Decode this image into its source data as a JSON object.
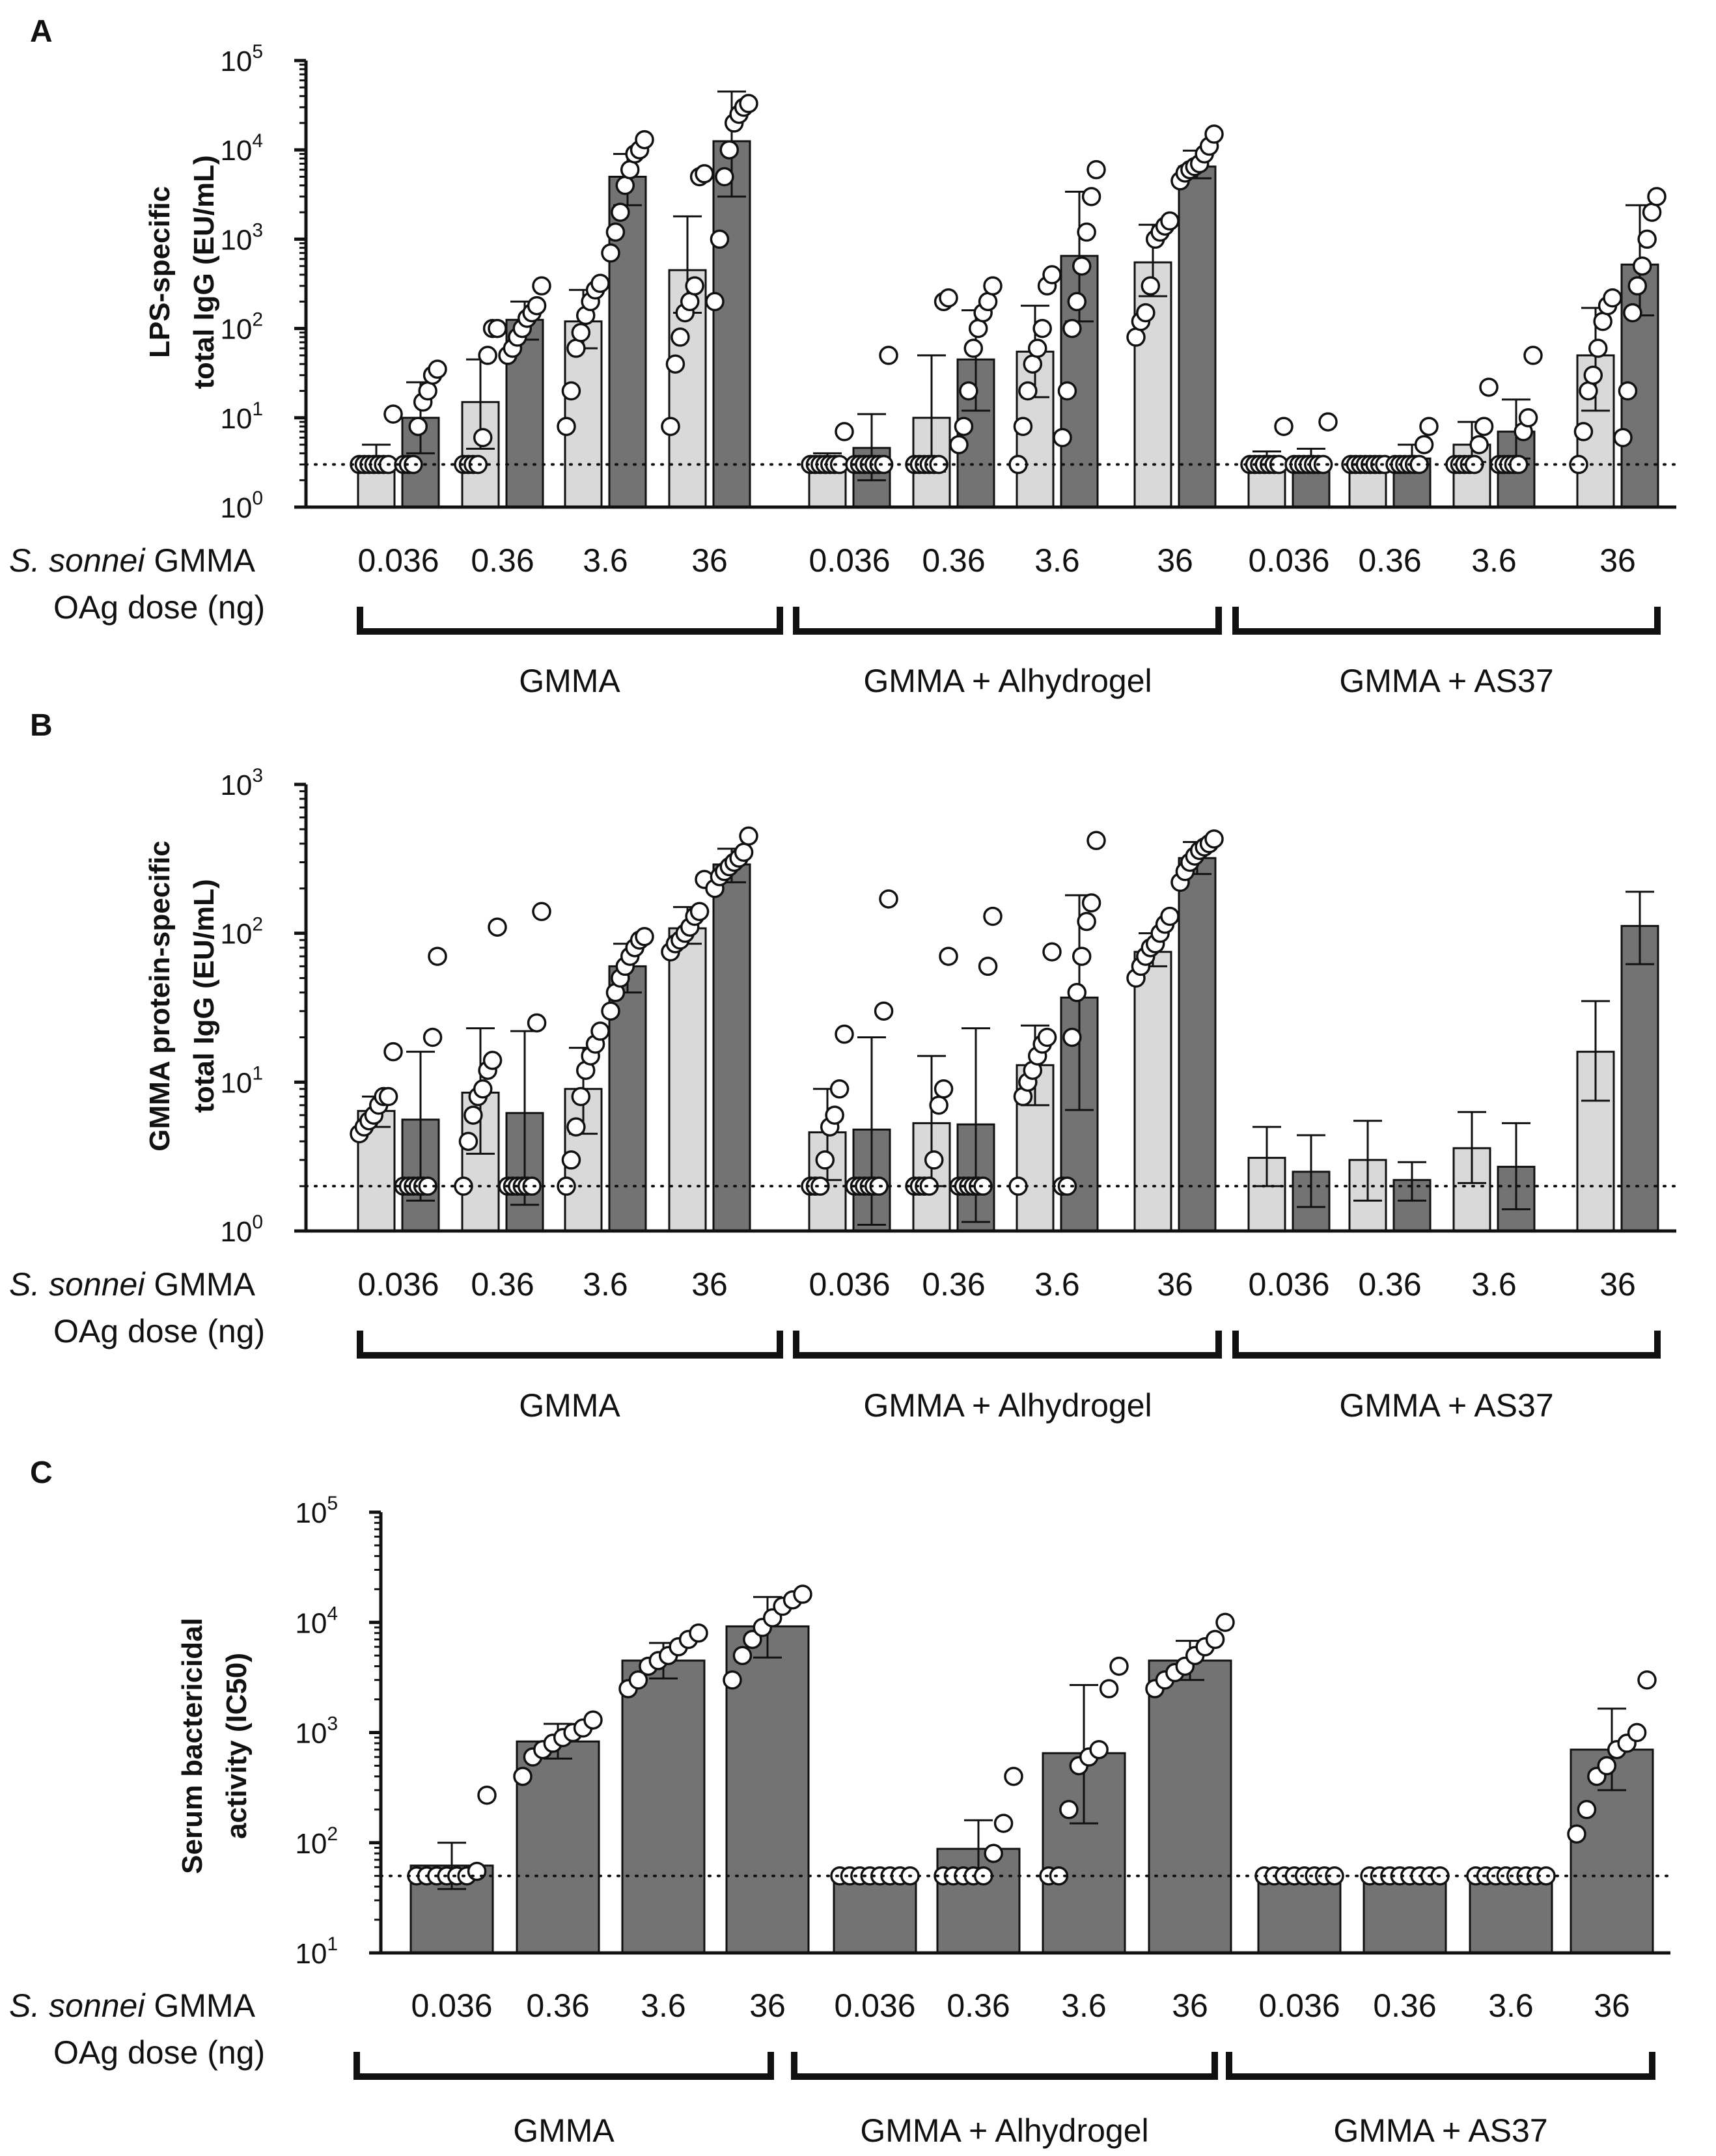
{
  "colors": {
    "light_bar": "#d9d9d9",
    "dark_bar": "#737373",
    "axis": "#111111",
    "point_fill": "#ffffff"
  },
  "row_labels": {
    "strain_italic": "S. sonnei",
    "strain_rest": " GMMA",
    "dose": "OAg dose (ng)"
  },
  "chart_data": [
    {
      "panel": "A",
      "type": "bar",
      "scale": "log",
      "ylabel": [
        "LPS-specific",
        "total IgG (EU/mL)"
      ],
      "ylim": [
        1,
        100000
      ],
      "yticks": [
        {
          "base": "10",
          "exp": "0"
        },
        {
          "base": "10",
          "exp": "1"
        },
        {
          "base": "10",
          "exp": "2"
        },
        {
          "base": "10",
          "exp": "3"
        },
        {
          "base": "10",
          "exp": "4"
        },
        {
          "base": "10",
          "exp": "5"
        }
      ],
      "lod": 3,
      "categories": [
        "0.036",
        "0.36",
        "3.6",
        "36",
        "0.036",
        "0.36",
        "3.6",
        "36",
        "0.036",
        "0.36",
        "3.6",
        "36"
      ],
      "groups": [
        "GMMA",
        "GMMA + Alhydrogel",
        "GMMA + AS37"
      ],
      "series": [
        {
          "name": "light",
          "values": [
            3.3,
            15,
            120,
            450,
            3.3,
            10,
            55,
            550,
            3.3,
            3,
            5,
            50
          ],
          "err": [
            [
              2.5,
              5
            ],
            [
              4.5,
              45
            ],
            [
              60,
              270
            ],
            [
              150,
              1800
            ],
            [
              2.9,
              4
            ],
            [
              2.5,
              50
            ],
            [
              17,
              180
            ],
            [
              230,
              1450
            ],
            [
              2.9,
              4.2
            ],
            [
              2.9,
              3.1
            ],
            [
              3.2,
              9
            ],
            [
              12,
              170
            ]
          ],
          "points": [
            [
              3,
              3,
              3,
              3,
              3,
              3,
              3,
              11
            ],
            [
              3,
              3,
              3,
              3,
              6,
              50,
              100,
              100
            ],
            [
              8,
              20,
              60,
              90,
              140,
              200,
              270,
              320
            ],
            [
              8,
              40,
              80,
              150,
              200,
              300,
              5000,
              5400
            ],
            [
              3,
              3,
              3,
              3,
              3,
              3,
              3,
              7
            ],
            [
              3,
              3,
              3,
              3,
              3,
              3,
              200,
              220
            ],
            [
              3,
              8,
              20,
              40,
              60,
              100,
              300,
              400
            ],
            [
              80,
              120,
              150,
              300,
              1000,
              1200,
              1400,
              1600
            ],
            [
              3,
              3,
              3,
              3,
              3,
              3,
              3,
              8
            ],
            [
              3,
              3,
              3,
              3,
              3,
              3,
              3,
              3
            ],
            [
              3,
              3,
              3,
              3,
              3,
              5,
              8,
              22
            ],
            [
              3,
              7,
              20,
              30,
              60,
              120,
              180,
              220
            ]
          ]
        },
        {
          "name": "dark",
          "values": [
            10,
            125,
            5000,
            12500,
            4.6,
            45,
            650,
            6500,
            3.4,
            3.5,
            7,
            520
          ],
          "err": [
            [
              4,
              25
            ],
            [
              75,
              200
            ],
            [
              2400,
              9000
            ],
            [
              3000,
              45000
            ],
            [
              2,
              11
            ],
            [
              12,
              160
            ],
            [
              120,
              3400
            ],
            [
              4800,
              9800
            ],
            [
              2.9,
              4.5
            ],
            [
              2.8,
              5
            ],
            [
              3.5,
              16
            ],
            [
              140,
              2400
            ]
          ],
          "points": [
            [
              3,
              3,
              3,
              8,
              15,
              20,
              30,
              35
            ],
            [
              50,
              60,
              80,
              100,
              130,
              150,
              180,
              300
            ],
            [
              700,
              1200,
              2000,
              4000,
              6000,
              9000,
              10000,
              13000
            ],
            [
              200,
              1000,
              5000,
              10000,
              20000,
              25000,
              30000,
              33000
            ],
            [
              3,
              3,
              3,
              3,
              3,
              3,
              3,
              50
            ],
            [
              5,
              8,
              20,
              60,
              100,
              150,
              200,
              300
            ],
            [
              6,
              20,
              100,
              200,
              500,
              1200,
              3000,
              6000
            ],
            [
              4500,
              5500,
              6000,
              6500,
              7000,
              9000,
              11000,
              15000
            ],
            [
              3,
              3,
              3,
              3,
              3,
              3,
              3,
              9
            ],
            [
              3,
              3,
              3,
              3,
              3,
              3,
              5,
              8
            ],
            [
              3,
              3,
              3,
              3,
              3,
              7,
              10,
              50
            ],
            [
              6,
              20,
              150,
              300,
              500,
              1000,
              2000,
              3000
            ]
          ]
        }
      ]
    },
    {
      "panel": "B",
      "type": "bar",
      "scale": "log",
      "ylabel": [
        "GMMA protein-specific",
        "total IgG (EU/mL)"
      ],
      "ylim": [
        1,
        1000
      ],
      "yticks": [
        {
          "base": "10",
          "exp": "0"
        },
        {
          "base": "10",
          "exp": "1"
        },
        {
          "base": "10",
          "exp": "2"
        },
        {
          "base": "10",
          "exp": "3"
        }
      ],
      "lod": 2,
      "categories": [
        "0.036",
        "0.36",
        "3.6",
        "36",
        "0.036",
        "0.36",
        "3.6",
        "36",
        "0.036",
        "0.36",
        "3.6",
        "36"
      ],
      "groups": [
        "GMMA",
        "GMMA + Alhydrogel",
        "GMMA + AS37"
      ],
      "series": [
        {
          "name": "light",
          "values": [
            6.4,
            8.5,
            9,
            108,
            4.6,
            5.3,
            13,
            75,
            3.1,
            3,
            3.6,
            16
          ],
          "err": [
            [
              5,
              8
            ],
            [
              3.3,
              23
            ],
            [
              4.5,
              17
            ],
            [
              85,
              150
            ],
            [
              2.2,
              9
            ],
            [
              2,
              15
            ],
            [
              7,
              24
            ],
            [
              60,
              100
            ],
            [
              2,
              5
            ],
            [
              1.6,
              5.5
            ],
            [
              2.1,
              6.3
            ],
            [
              7.5,
              35
            ]
          ],
          "points": [
            [
              4.5,
              5,
              5.5,
              6,
              7,
              8,
              8,
              16
            ],
            [
              2,
              4,
              6,
              8,
              9,
              12,
              14,
              110
            ],
            [
              2,
              3,
              5,
              8,
              12,
              15,
              18,
              22
            ],
            [
              75,
              85,
              90,
              100,
              110,
              130,
              140,
              230
            ],
            [
              2,
              2,
              2,
              3,
              5,
              6,
              9,
              21
            ],
            [
              2,
              2,
              2,
              2,
              3,
              7,
              9,
              70
            ],
            [
              2,
              8,
              10,
              12,
              15,
              18,
              20,
              75
            ],
            [
              50,
              60,
              70,
              80,
              85,
              100,
              115,
              130
            ]
          ]
        },
        {
          "name": "dark",
          "values": [
            5.6,
            6.2,
            60,
            290,
            4.8,
            5.2,
            37,
            320,
            2.5,
            2.2,
            2.7,
            112
          ],
          "err": [
            [
              1.6,
              16
            ],
            [
              1.5,
              22
            ],
            [
              40,
              85
            ],
            [
              220,
              370
            ],
            [
              1.1,
              20
            ],
            [
              1.15,
              23
            ],
            [
              6.5,
              180
            ],
            [
              250,
              410
            ],
            [
              1.45,
              4.4
            ],
            [
              1.6,
              2.9
            ],
            [
              1.4,
              5.3
            ],
            [
              62,
              190
            ]
          ],
          "points": [
            [
              2,
              2,
              2,
              2,
              2,
              2,
              20,
              70
            ],
            [
              2,
              2,
              2,
              2,
              2,
              2,
              25,
              140
            ],
            [
              30,
              40,
              50,
              60,
              70,
              80,
              90,
              95
            ],
            [
              200,
              240,
              260,
              280,
              300,
              320,
              350,
              450
            ],
            [
              2,
              2,
              2,
              2,
              2,
              2,
              30,
              170
            ],
            [
              2,
              2,
              2,
              2,
              2,
              2,
              60,
              130
            ],
            [
              2,
              2,
              20,
              40,
              70,
              120,
              160,
              420
            ],
            [
              220,
              260,
              300,
              330,
              360,
              380,
              400,
              430
            ]
          ]
        }
      ]
    },
    {
      "panel": "C",
      "type": "bar",
      "scale": "log",
      "ylabel": [
        "Serum bactericidal",
        "activity (IC50)"
      ],
      "ylim": [
        10,
        100000
      ],
      "yticks": [
        {
          "base": "10",
          "exp": "1"
        },
        {
          "base": "10",
          "exp": "2"
        },
        {
          "base": "10",
          "exp": "3"
        },
        {
          "base": "10",
          "exp": "4"
        },
        {
          "base": "10",
          "exp": "5"
        }
      ],
      "lod": 50,
      "categories": [
        "0.036",
        "0.36",
        "3.6",
        "36",
        "0.036",
        "0.36",
        "3.6",
        "36",
        "0.036",
        "0.36",
        "3.6",
        "36"
      ],
      "groups": [
        "GMMA",
        "GMMA + Alhydrogel",
        "GMMA + AS37"
      ],
      "series": [
        {
          "name": "single",
          "values": [
            62,
            830,
            4500,
            9200,
            50,
            88,
            650,
            4500,
            50,
            50,
            50,
            700
          ],
          "err": [
            [
              38,
              100
            ],
            [
              580,
              1200
            ],
            [
              3100,
              6500
            ],
            [
              4800,
              17000
            ],
            [
              50,
              50
            ],
            [
              50,
              160
            ],
            [
              150,
              2700
            ],
            [
              3000,
              6800
            ],
            [
              50,
              50
            ],
            [
              50,
              50
            ],
            [
              50,
              50
            ],
            [
              300,
              1650
            ]
          ],
          "points": [
            [
              50,
              50,
              50,
              50,
              50,
              50,
              55,
              270
            ],
            [
              400,
              600,
              700,
              800,
              900,
              1000,
              1100,
              1300
            ],
            [
              2500,
              3000,
              4000,
              4500,
              5000,
              6000,
              7000,
              8000
            ],
            [
              3000,
              5000,
              7000,
              9000,
              11000,
              14000,
              16000,
              18000
            ],
            [
              50,
              50,
              50,
              50,
              50,
              50,
              50,
              50
            ],
            [
              50,
              50,
              50,
              50,
              50,
              80,
              150,
              400
            ],
            [
              50,
              50,
              200,
              500,
              600,
              700,
              2500,
              4000
            ],
            [
              2500,
              3000,
              3500,
              4000,
              5000,
              6000,
              7000,
              10000
            ],
            [
              50,
              50,
              50,
              50,
              50,
              50,
              50,
              50
            ],
            [
              50,
              50,
              50,
              50,
              50,
              50,
              50,
              50
            ],
            [
              50,
              50,
              50,
              50,
              50,
              50,
              50,
              50
            ],
            [
              120,
              200,
              400,
              500,
              700,
              800,
              1000,
              3000
            ]
          ]
        }
      ]
    }
  ]
}
